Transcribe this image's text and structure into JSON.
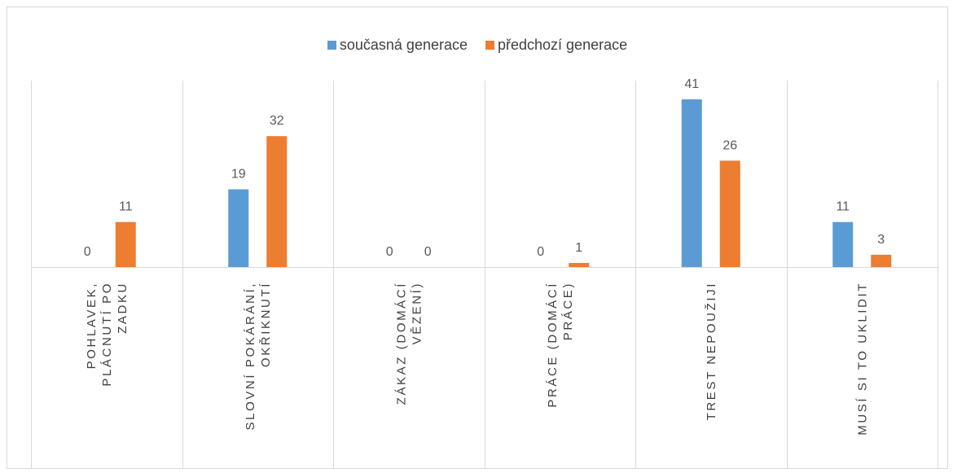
{
  "chart_data": {
    "type": "bar",
    "categories": [
      [
        "POHLAVEK,",
        "PLÁCNUTÍ PO",
        "ZADKU"
      ],
      [
        "SLOVNÍ POKÁRÁNÍ,",
        "OKŘIKNUTÍ"
      ],
      [
        "ZÁKAZ (DOMÁCÍ",
        "VĚZENÍ)"
      ],
      [
        "PRÁCE (DOMÁCÍ",
        "PRÁCE)"
      ],
      [
        "TREST NEPOUŽIJI"
      ],
      [
        "MUSÍ SI TO UKLIDIT"
      ]
    ],
    "series": [
      {
        "name": "současná generace",
        "color": "#5b9bd5",
        "values": [
          0,
          19,
          0,
          0,
          41,
          11
        ]
      },
      {
        "name": "předchozí generace",
        "color": "#ed7d31",
        "values": [
          11,
          32,
          0,
          1,
          26,
          3
        ]
      }
    ],
    "ylim": [
      0,
      45
    ],
    "grid": false,
    "legend_position": "top"
  }
}
